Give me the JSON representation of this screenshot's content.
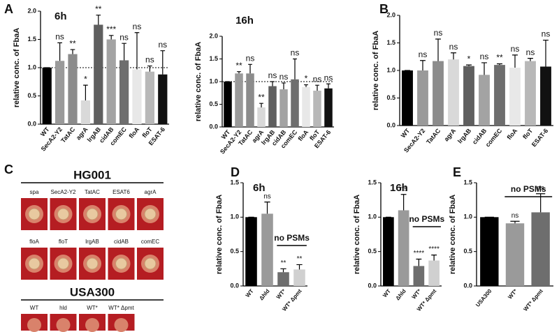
{
  "panel_labels": [
    "A",
    "B",
    "C",
    "D",
    "E"
  ],
  "panel_c": {
    "groups": [
      {
        "title": "HG001",
        "rows": [
          [
            "spa",
            "SecA2-Y2",
            "TatAC",
            "ESAT6",
            "agrA"
          ],
          [
            "floA",
            "floT",
            "lrgAB",
            "cidAB",
            "comEC"
          ]
        ]
      },
      {
        "title": "USA300",
        "rows": [
          [
            "WT",
            "hld",
            "WT*",
            "WT* Δpmt"
          ]
        ]
      }
    ]
  },
  "chart_data": [
    {
      "type": "bar",
      "title": "6h",
      "ylabel": "relative conc. of FbaA",
      "categories": [
        "WT",
        "SecA2-Y2",
        "TatAC",
        "agrA",
        "lrgAB",
        "cidAB",
        "comEC",
        "floA",
        "floT",
        "ESAT-6"
      ],
      "values": [
        1.0,
        1.12,
        1.24,
        0.42,
        1.76,
        1.5,
        1.13,
        0.97,
        0.93,
        0.88
      ],
      "errors": [
        0,
        0.32,
        0.08,
        0.27,
        0.17,
        0.07,
        0.3,
        0.65,
        0.1,
        0.42
      ],
      "annotations": [
        null,
        "ns",
        "**",
        "*",
        "**",
        "***",
        "ns",
        "ns",
        "ns",
        "ns"
      ],
      "colors": [
        "#000000",
        "#9a9a9a",
        "#8c8c8c",
        "#d9d9d9",
        "#5f5f5f",
        "#a3a3a3",
        "#6e6e6e",
        "#e8e8e8",
        "#b8b8b8",
        "#111111"
      ],
      "reference_line": 1.0,
      "ylim": [
        0,
        2
      ],
      "yticks": [
        {
          "value": 0,
          "label": "0.0"
        },
        {
          "value": 0.5,
          "label": "0.5"
        },
        {
          "value": 1,
          "label": "1.0"
        },
        {
          "value": 1.5,
          "label": "1.5"
        },
        {
          "value": 2,
          "label": "2.0"
        }
      ]
    },
    {
      "type": "bar",
      "title": "16h",
      "ylabel": "relative conc. of FbaA",
      "categories": [
        "WT",
        "SecA2-Y2",
        "TatAC",
        "agrA",
        "lrgAB",
        "cidAB",
        "comEC",
        "floA",
        "floT",
        "ESAT-6"
      ],
      "values": [
        1.0,
        1.18,
        1.18,
        0.43,
        0.9,
        0.83,
        1.05,
        0.88,
        0.8,
        0.85
      ],
      "errors": [
        0,
        0.04,
        0.2,
        0.09,
        0.1,
        0.14,
        0.45,
        0.05,
        0.12,
        0.1
      ],
      "annotations": [
        null,
        "**",
        "ns",
        "**",
        "ns",
        "ns",
        "ns",
        "*",
        "ns",
        "ns"
      ],
      "colors": [
        "#000000",
        "#9a9a9a",
        "#8c8c8c",
        "#d9d9d9",
        "#5f5f5f",
        "#a3a3a3",
        "#6e6e6e",
        "#e8e8e8",
        "#b8b8b8",
        "#111111"
      ],
      "reference_line": 1.0,
      "ylim": [
        0,
        2
      ],
      "yticks": [
        {
          "value": 0,
          "label": "0.0"
        },
        {
          "value": 0.5,
          "label": "0.5"
        },
        {
          "value": 1,
          "label": "1.0"
        },
        {
          "value": 1.5,
          "label": "1.5"
        },
        {
          "value": 2,
          "label": "2.0"
        }
      ]
    },
    {
      "type": "bar",
      "ylabel": "relative conc. of FbaA",
      "categories": [
        "WT",
        "SecA2-Y2",
        "TatAC",
        "agrA",
        "lrgAB",
        "cidAB",
        "comEC",
        "floA",
        "floT",
        "ESAT-6"
      ],
      "values": [
        1.0,
        1.0,
        1.17,
        1.2,
        1.08,
        0.92,
        1.1,
        1.05,
        1.17,
        1.07
      ],
      "errors": [
        0,
        0.18,
        0.4,
        0.12,
        0.02,
        0.22,
        0.02,
        0.23,
        0.05,
        0.48
      ],
      "annotations": [
        null,
        "ns",
        "ns",
        "ns",
        "*",
        "ns",
        "**",
        "ns",
        "ns",
        "ns"
      ],
      "colors": [
        "#000000",
        "#9a9a9a",
        "#8c8c8c",
        "#d9d9d9",
        "#5f5f5f",
        "#a3a3a3",
        "#6e6e6e",
        "#e8e8e8",
        "#b8b8b8",
        "#111111"
      ],
      "ylim": [
        0,
        2
      ],
      "yticks": [
        {
          "value": 0,
          "label": "0.0"
        },
        {
          "value": 0.5,
          "label": "0.5"
        },
        {
          "value": 1,
          "label": "1.0"
        },
        {
          "value": 1.5,
          "label": "1.5"
        },
        {
          "value": 2,
          "label": "2.0"
        }
      ]
    },
    {
      "type": "bar",
      "title": "6h",
      "ylabel": "relative conc. of FbaA",
      "categories": [
        "WT",
        "Δhld",
        "WT*",
        "WT* Δpmt"
      ],
      "values": [
        1.0,
        1.05,
        0.2,
        0.24
      ],
      "errors": [
        0,
        0.17,
        0.05,
        0.07
      ],
      "annotations": [
        null,
        "ns",
        "**",
        "**"
      ],
      "colors": [
        "#000000",
        "#9a9a9a",
        "#6e6e6e",
        "#d0d0d0"
      ],
      "bracket_label": "no PSMs",
      "ylim": [
        0,
        1.5
      ],
      "yticks": [
        {
          "value": 0,
          "label": "0.0"
        },
        {
          "value": 0.5,
          "label": "0.5"
        },
        {
          "value": 1,
          "label": "1.0"
        },
        {
          "value": 1.5,
          "label": "1.5"
        }
      ]
    },
    {
      "type": "bar",
      "title": "16h",
      "ylabel": "relative conc. of FbaA",
      "categories": [
        "WT",
        "Δhld",
        "WT*",
        "WT* Δpmt"
      ],
      "values": [
        1.0,
        1.1,
        0.29,
        0.37
      ],
      "errors": [
        0,
        0.23,
        0.1,
        0.08
      ],
      "annotations": [
        null,
        "ns",
        "****",
        "****"
      ],
      "colors": [
        "#000000",
        "#9a9a9a",
        "#6e6e6e",
        "#d0d0d0"
      ],
      "bracket_label": "no PSMs",
      "ylim": [
        0,
        1.5
      ],
      "yticks": [
        {
          "value": 0,
          "label": "0.0"
        },
        {
          "value": 0.5,
          "label": "0.5"
        },
        {
          "value": 1,
          "label": "1.0"
        },
        {
          "value": 1.5,
          "label": "1.5"
        }
      ]
    },
    {
      "type": "bar",
      "ylabel": "relative conc. of FbaA",
      "categories": [
        "USA300",
        "WT*",
        "WT* Δpmt"
      ],
      "values": [
        1.0,
        0.91,
        1.07
      ],
      "errors": [
        0,
        0.03,
        0.27
      ],
      "annotations": [
        null,
        "ns",
        "ns"
      ],
      "colors": [
        "#000000",
        "#9a9a9a",
        "#6e6e6e"
      ],
      "bracket_label": "no PSMs",
      "ylim": [
        0,
        1.5
      ],
      "yticks": [
        {
          "value": 0,
          "label": "0.0"
        },
        {
          "value": 0.5,
          "label": "0.5"
        },
        {
          "value": 1,
          "label": "1.0"
        },
        {
          "value": 1.5,
          "label": "1.5"
        }
      ]
    }
  ]
}
